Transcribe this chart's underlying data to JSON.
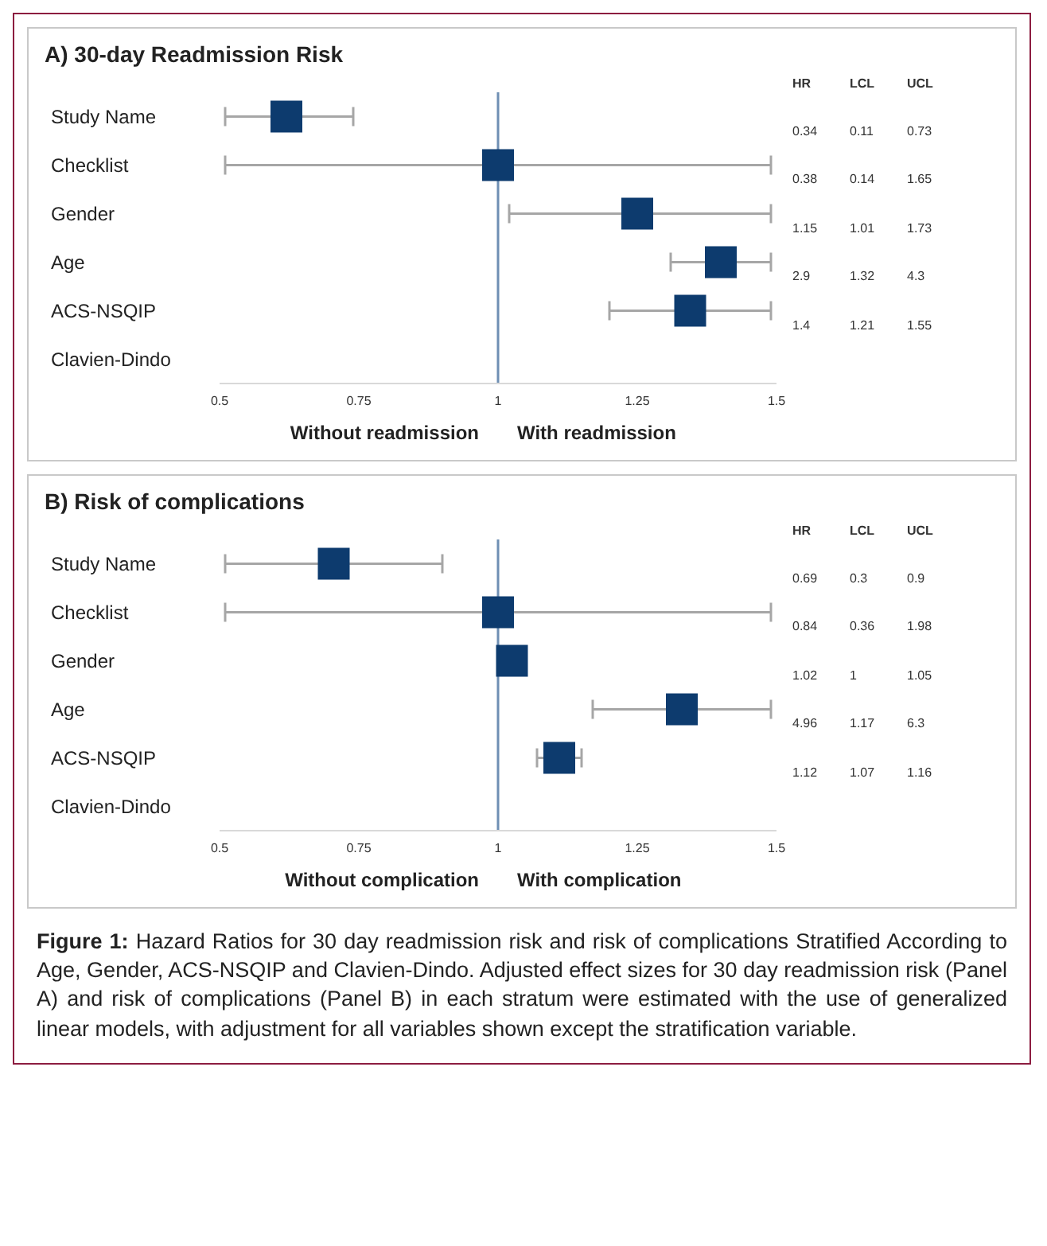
{
  "chart_data": [
    {
      "type": "scatter",
      "title": "A) 30-day Readmission Risk",
      "categories": [
        "Study Name",
        "Checklist",
        "Gender",
        "Age",
        "ACS-NSQIP",
        "Clavien-Dindo"
      ],
      "orientation": "horizontal",
      "series": [
        {
          "color": "#0d3b6e",
          "values": [
            0.62,
            1.0,
            1.25,
            1.4,
            1.345,
            null
          ],
          "errors": [
            [
              0.51,
              0.74
            ],
            [
              0.51,
              1.49
            ],
            [
              1.02,
              1.49
            ],
            [
              1.31,
              1.49
            ],
            [
              1.2,
              1.49
            ],
            null
          ]
        }
      ],
      "xlim": [
        0.5,
        1.5
      ],
      "xticks": [
        0.5,
        0.75,
        1,
        1.25,
        1.5
      ],
      "marker": "square",
      "ref_lines": [
        {
          "axis": "x",
          "value": 1,
          "color": "#6f8fb3"
        }
      ],
      "annotations": [
        "Without readmission",
        "With readmission",
        "HR",
        "LCL",
        "UCL",
        "0.34",
        "0.11",
        "0.73",
        "0.38",
        "0.14",
        "1.65",
        "1.15",
        "1.01",
        "1.73",
        "2.9",
        "1.32",
        "4.3",
        "1.4",
        "1.21",
        "1.55"
      ]
    },
    {
      "type": "scatter",
      "title": "B) Risk of complications",
      "categories": [
        "Study Name",
        "Checklist",
        "Gender",
        "Age",
        "ACS-NSQIP",
        "Clavien-Dindo"
      ],
      "orientation": "horizontal",
      "series": [
        {
          "color": "#0d3b6e",
          "values": [
            0.705,
            1.0,
            1.025,
            1.33,
            1.11,
            null
          ],
          "errors": [
            [
              0.51,
              0.9
            ],
            [
              0.51,
              1.49
            ],
            null,
            [
              1.17,
              1.49
            ],
            [
              1.07,
              1.15
            ],
            null
          ]
        }
      ],
      "xlim": [
        0.5,
        1.5
      ],
      "xticks": [
        0.5,
        0.75,
        1,
        1.25,
        1.5
      ],
      "marker": "square",
      "ref_lines": [
        {
          "axis": "x",
          "value": 1,
          "color": "#6f8fb3"
        }
      ],
      "annotations": [
        "Without complication",
        "With complication",
        "HR",
        "LCL",
        "UCL",
        "0.69",
        "0.3",
        "0.9",
        "0.84",
        "0.36",
        "1.98",
        "1.02",
        "1",
        "1.05",
        "4.96",
        "1.17",
        "6.3",
        "1.12",
        "1.07",
        "1.16",
        "Figure 1: Hazard Ratios for 30 day readmission risk and risk of complications Stratified According to Age, Gender, ACS-NSQIP and Clavien-Dindo. Adjusted effect sizes for 30 day readmission risk (Panel A) and risk of complications (Panel B) in each stratum were estimated with the use of generalized linear models, with adjustment for all variables shown except the stratification variable."
      ]
    }
  ]
}
